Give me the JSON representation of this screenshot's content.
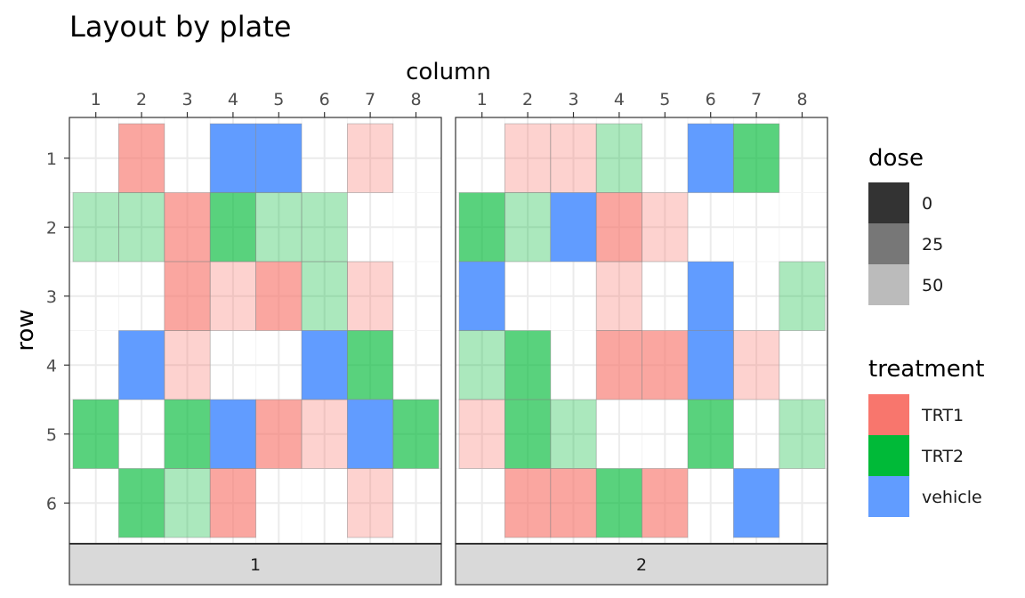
{
  "chart_data": {
    "type": "heatmap",
    "title": "Layout by plate",
    "xlabel": "column",
    "ylabel": "row",
    "x_ticks": [
      "1",
      "2",
      "3",
      "4",
      "5",
      "6",
      "7",
      "8"
    ],
    "y_ticks": [
      "1",
      "2",
      "3",
      "4",
      "5",
      "6"
    ],
    "facets": [
      "1",
      "2"
    ],
    "grid": true,
    "legend_position": "right",
    "legends": {
      "dose": {
        "title": "dose",
        "entries": [
          {
            "label": "0",
            "color": "#333333"
          },
          {
            "label": "25",
            "color": "#777777"
          },
          {
            "label": "50",
            "color": "#bbbbbb"
          }
        ]
      },
      "treatment": {
        "title": "treatment",
        "entries": [
          {
            "label": "TRT1",
            "color": "#F8766D"
          },
          {
            "label": "TRT2",
            "color": "#00BA38"
          },
          {
            "label": "vehicle",
            "color": "#619CFF"
          }
        ]
      }
    },
    "colors": {
      "TRT1": "#F8766D",
      "TRT2": "#00BA38",
      "vehicle": "#619CFF"
    },
    "dose_alpha": {
      "0": 1.0,
      "25": 0.65,
      "50": 0.33
    },
    "cells": [
      {
        "plate": "1",
        "row": 1,
        "column": 2,
        "treatment": "TRT1",
        "dose": 25
      },
      {
        "plate": "1",
        "row": 1,
        "column": 4,
        "treatment": "vehicle",
        "dose": 0
      },
      {
        "plate": "1",
        "row": 1,
        "column": 5,
        "treatment": "vehicle",
        "dose": 0
      },
      {
        "plate": "1",
        "row": 1,
        "column": 7,
        "treatment": "TRT1",
        "dose": 50
      },
      {
        "plate": "1",
        "row": 2,
        "column": 1,
        "treatment": "TRT2",
        "dose": 50
      },
      {
        "plate": "1",
        "row": 2,
        "column": 2,
        "treatment": "TRT2",
        "dose": 50
      },
      {
        "plate": "1",
        "row": 2,
        "column": 3,
        "treatment": "TRT1",
        "dose": 25
      },
      {
        "plate": "1",
        "row": 2,
        "column": 4,
        "treatment": "TRT2",
        "dose": 25
      },
      {
        "plate": "1",
        "row": 2,
        "column": 5,
        "treatment": "TRT2",
        "dose": 50
      },
      {
        "plate": "1",
        "row": 2,
        "column": 6,
        "treatment": "TRT2",
        "dose": 50
      },
      {
        "plate": "1",
        "row": 3,
        "column": 3,
        "treatment": "TRT1",
        "dose": 25
      },
      {
        "plate": "1",
        "row": 3,
        "column": 4,
        "treatment": "TRT1",
        "dose": 50
      },
      {
        "plate": "1",
        "row": 3,
        "column": 5,
        "treatment": "TRT1",
        "dose": 25
      },
      {
        "plate": "1",
        "row": 3,
        "column": 6,
        "treatment": "TRT2",
        "dose": 50
      },
      {
        "plate": "1",
        "row": 3,
        "column": 7,
        "treatment": "TRT1",
        "dose": 50
      },
      {
        "plate": "1",
        "row": 4,
        "column": 2,
        "treatment": "vehicle",
        "dose": 0
      },
      {
        "plate": "1",
        "row": 4,
        "column": 3,
        "treatment": "TRT1",
        "dose": 50
      },
      {
        "plate": "1",
        "row": 4,
        "column": 6,
        "treatment": "vehicle",
        "dose": 0
      },
      {
        "plate": "1",
        "row": 4,
        "column": 7,
        "treatment": "TRT2",
        "dose": 25
      },
      {
        "plate": "1",
        "row": 5,
        "column": 1,
        "treatment": "TRT2",
        "dose": 25
      },
      {
        "plate": "1",
        "row": 5,
        "column": 3,
        "treatment": "TRT2",
        "dose": 25
      },
      {
        "plate": "1",
        "row": 5,
        "column": 4,
        "treatment": "vehicle",
        "dose": 0
      },
      {
        "plate": "1",
        "row": 5,
        "column": 5,
        "treatment": "TRT1",
        "dose": 25
      },
      {
        "plate": "1",
        "row": 5,
        "column": 6,
        "treatment": "TRT1",
        "dose": 50
      },
      {
        "plate": "1",
        "row": 5,
        "column": 7,
        "treatment": "vehicle",
        "dose": 0
      },
      {
        "plate": "1",
        "row": 5,
        "column": 8,
        "treatment": "TRT2",
        "dose": 25
      },
      {
        "plate": "1",
        "row": 6,
        "column": 2,
        "treatment": "TRT2",
        "dose": 25
      },
      {
        "plate": "1",
        "row": 6,
        "column": 3,
        "treatment": "TRT2",
        "dose": 50
      },
      {
        "plate": "1",
        "row": 6,
        "column": 4,
        "treatment": "TRT1",
        "dose": 25
      },
      {
        "plate": "1",
        "row": 6,
        "column": 7,
        "treatment": "TRT1",
        "dose": 50
      },
      {
        "plate": "2",
        "row": 1,
        "column": 2,
        "treatment": "TRT1",
        "dose": 50
      },
      {
        "plate": "2",
        "row": 1,
        "column": 3,
        "treatment": "TRT1",
        "dose": 50
      },
      {
        "plate": "2",
        "row": 1,
        "column": 4,
        "treatment": "TRT2",
        "dose": 50
      },
      {
        "plate": "2",
        "row": 1,
        "column": 6,
        "treatment": "vehicle",
        "dose": 0
      },
      {
        "plate": "2",
        "row": 1,
        "column": 7,
        "treatment": "TRT2",
        "dose": 25
      },
      {
        "plate": "2",
        "row": 2,
        "column": 1,
        "treatment": "TRT2",
        "dose": 25
      },
      {
        "plate": "2",
        "row": 2,
        "column": 2,
        "treatment": "TRT2",
        "dose": 50
      },
      {
        "plate": "2",
        "row": 2,
        "column": 3,
        "treatment": "vehicle",
        "dose": 0
      },
      {
        "plate": "2",
        "row": 2,
        "column": 4,
        "treatment": "TRT1",
        "dose": 25
      },
      {
        "plate": "2",
        "row": 2,
        "column": 5,
        "treatment": "TRT1",
        "dose": 50
      },
      {
        "plate": "2",
        "row": 3,
        "column": 1,
        "treatment": "vehicle",
        "dose": 0
      },
      {
        "plate": "2",
        "row": 3,
        "column": 4,
        "treatment": "TRT1",
        "dose": 50
      },
      {
        "plate": "2",
        "row": 3,
        "column": 6,
        "treatment": "vehicle",
        "dose": 0
      },
      {
        "plate": "2",
        "row": 3,
        "column": 8,
        "treatment": "TRT2",
        "dose": 50
      },
      {
        "plate": "2",
        "row": 4,
        "column": 1,
        "treatment": "TRT2",
        "dose": 50
      },
      {
        "plate": "2",
        "row": 4,
        "column": 2,
        "treatment": "TRT2",
        "dose": 25
      },
      {
        "plate": "2",
        "row": 4,
        "column": 4,
        "treatment": "TRT1",
        "dose": 25
      },
      {
        "plate": "2",
        "row": 4,
        "column": 5,
        "treatment": "TRT1",
        "dose": 25
      },
      {
        "plate": "2",
        "row": 4,
        "column": 6,
        "treatment": "vehicle",
        "dose": 0
      },
      {
        "plate": "2",
        "row": 4,
        "column": 7,
        "treatment": "TRT1",
        "dose": 50
      },
      {
        "plate": "2",
        "row": 5,
        "column": 1,
        "treatment": "TRT1",
        "dose": 50
      },
      {
        "plate": "2",
        "row": 5,
        "column": 2,
        "treatment": "TRT2",
        "dose": 25
      },
      {
        "plate": "2",
        "row": 5,
        "column": 3,
        "treatment": "TRT2",
        "dose": 50
      },
      {
        "plate": "2",
        "row": 5,
        "column": 6,
        "treatment": "TRT2",
        "dose": 25
      },
      {
        "plate": "2",
        "row": 5,
        "column": 8,
        "treatment": "TRT2",
        "dose": 50
      },
      {
        "plate": "2",
        "row": 6,
        "column": 2,
        "treatment": "TRT1",
        "dose": 25
      },
      {
        "plate": "2",
        "row": 6,
        "column": 3,
        "treatment": "TRT1",
        "dose": 25
      },
      {
        "plate": "2",
        "row": 6,
        "column": 4,
        "treatment": "TRT2",
        "dose": 25
      },
      {
        "plate": "2",
        "row": 6,
        "column": 5,
        "treatment": "TRT1",
        "dose": 25
      },
      {
        "plate": "2",
        "row": 6,
        "column": 7,
        "treatment": "vehicle",
        "dose": 0
      }
    ]
  }
}
